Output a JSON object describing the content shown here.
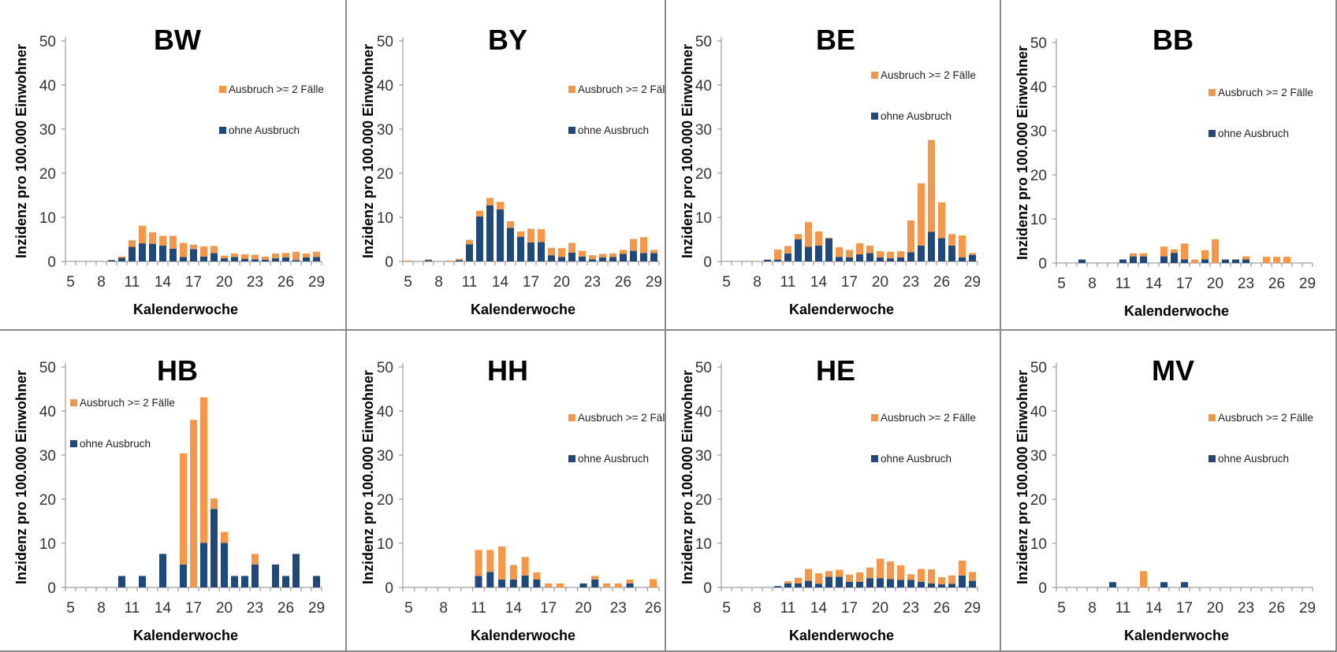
{
  "colors": {
    "ausbruch": "#F79646",
    "ohne": "#1F497D",
    "axis": "#8a8a8a",
    "grid_border": "#8a8a8a"
  },
  "chart_data": [
    {
      "type": "bar",
      "stacked": true,
      "title": "BW",
      "xlabel": "Kalenderwoche",
      "ylabel": "Inzidenz pro 100.000 Einwohner",
      "x_range": [
        5,
        29
      ],
      "x_ticks": [
        "5",
        "8",
        "11",
        "14",
        "17",
        "20",
        "23",
        "26",
        "29"
      ],
      "y_ticks": [
        "0",
        "10",
        "20",
        "30",
        "40",
        "50"
      ],
      "ylim": [
        0,
        50
      ],
      "legend_position": "right",
      "series": [
        {
          "name": "Ausbruch >= 2 Fälle",
          "color": "#F79646",
          "x": [
            10,
            11,
            12,
            13,
            14,
            15,
            16,
            17,
            18,
            19,
            20,
            21,
            22,
            23,
            24,
            25,
            26,
            27,
            28,
            29
          ],
          "values": [
            0.3,
            1.5,
            4.0,
            2.6,
            2.2,
            2.9,
            3.2,
            1.0,
            2.3,
            1.6,
            0.6,
            0.8,
            1.0,
            1.0,
            0.7,
            1.1,
            1.0,
            1.9,
            0.9,
            1.2
          ]
        },
        {
          "name": "ohne Ausbruch",
          "color": "#1F497D",
          "x": [
            9,
            10,
            11,
            12,
            13,
            14,
            15,
            16,
            17,
            18,
            19,
            20,
            21,
            22,
            23,
            24,
            25,
            26,
            27,
            28,
            29
          ],
          "values": [
            0.3,
            0.8,
            3.3,
            4.1,
            4.0,
            3.6,
            2.9,
            1.0,
            2.8,
            1.1,
            1.9,
            0.7,
            1.0,
            0.6,
            0.5,
            0.4,
            0.7,
            0.9,
            0.3,
            0.9,
            1.0
          ]
        }
      ]
    },
    {
      "type": "bar",
      "stacked": true,
      "title": "BY",
      "xlabel": "Kalenderwoche",
      "ylabel": "Inzidenz pro 100.000 Einwohner",
      "x_range": [
        5,
        29
      ],
      "x_ticks": [
        "5",
        "8",
        "11",
        "14",
        "17",
        "20",
        "23",
        "26",
        "29"
      ],
      "y_ticks": [
        "0",
        "10",
        "20",
        "30",
        "40",
        "50"
      ],
      "ylim": [
        0,
        50
      ],
      "legend_position": "right",
      "series": [
        {
          "name": "Ausbruch >= 2 Fälle",
          "color": "#F79646",
          "x": [
            5,
            7,
            9,
            10,
            11,
            12,
            13,
            14,
            15,
            16,
            17,
            18,
            19,
            20,
            21,
            22,
            23,
            24,
            25,
            26,
            27,
            28,
            29
          ],
          "values": [
            0.2,
            0.2,
            0.2,
            0.3,
            1.0,
            1.3,
            1.7,
            1.7,
            1.5,
            1.2,
            3.1,
            2.9,
            1.7,
            2.0,
            2.2,
            1.3,
            0.9,
            0.8,
            0.8,
            0.9,
            2.7,
            3.6,
            0.7
          ]
        },
        {
          "name": "ohne Ausbruch",
          "color": "#1F497D",
          "x": [
            7,
            10,
            11,
            12,
            13,
            14,
            15,
            16,
            17,
            18,
            19,
            20,
            21,
            22,
            23,
            24,
            25,
            26,
            27,
            28,
            29
          ],
          "values": [
            0.3,
            0.3,
            3.9,
            10.2,
            12.7,
            11.8,
            7.6,
            5.6,
            4.3,
            4.4,
            1.4,
            1.0,
            2.0,
            1.1,
            0.5,
            0.9,
            1.0,
            1.7,
            2.4,
            1.9,
            1.9
          ]
        }
      ]
    },
    {
      "type": "bar",
      "stacked": true,
      "title": "BE",
      "xlabel": "Kalenderwoche",
      "ylabel": "Inzidenz pro 100.000 Einwohner",
      "x_range": [
        5,
        29
      ],
      "x_ticks": [
        "5",
        "8",
        "11",
        "14",
        "17",
        "20",
        "23",
        "26",
        "29"
      ],
      "y_ticks": [
        "0",
        "10",
        "20",
        "30",
        "40",
        "50"
      ],
      "ylim": [
        0,
        50
      ],
      "legend_position": "right",
      "series": [
        {
          "name": "Ausbruch >= 2 Fälle",
          "color": "#F79646",
          "x": [
            10,
            11,
            12,
            13,
            14,
            15,
            16,
            17,
            18,
            19,
            20,
            21,
            22,
            23,
            24,
            25,
            26,
            27,
            28,
            29
          ],
          "values": [
            2.3,
            1.7,
            1.2,
            5.6,
            3.2,
            0.2,
            2.2,
            1.7,
            2.5,
            1.7,
            1.4,
            1.5,
            1.4,
            7.2,
            14.1,
            20.8,
            8.1,
            2.6,
            5.0,
            0.4
          ]
        },
        {
          "name": "ohne Ausbruch",
          "color": "#1F497D",
          "x": [
            9,
            10,
            11,
            12,
            13,
            14,
            15,
            16,
            17,
            18,
            19,
            20,
            21,
            22,
            23,
            24,
            25,
            26,
            27,
            28,
            29
          ],
          "values": [
            0.4,
            0.4,
            1.8,
            5.0,
            3.3,
            3.6,
            5.2,
            1.0,
            0.9,
            1.6,
            1.9,
            0.9,
            0.7,
            0.9,
            2.1,
            3.6,
            6.7,
            5.3,
            3.6,
            0.9,
            1.5
          ]
        }
      ]
    },
    {
      "type": "bar",
      "stacked": true,
      "title": "BB",
      "xlabel": "Kalenderwoche",
      "ylabel": "Inzidenz pro 100.000 Einwohner",
      "x_range": [
        5,
        29
      ],
      "x_ticks": [
        "5",
        "8",
        "11",
        "14",
        "17",
        "20",
        "23",
        "26",
        "29"
      ],
      "y_ticks": [
        "0",
        "10",
        "20",
        "30",
        "40",
        "50"
      ],
      "ylim": [
        0,
        50
      ],
      "legend_position": "right",
      "series": [
        {
          "name": "Ausbruch >= 2 Fälle",
          "color": "#F79646",
          "x": [
            12,
            13,
            15,
            16,
            17,
            18,
            19,
            20,
            23,
            25,
            26,
            27
          ],
          "values": [
            0.7,
            0.7,
            2.2,
            0.8,
            3.6,
            0.8,
            2.1,
            5.4,
            0.7,
            1.4,
            1.4,
            1.4
          ]
        },
        {
          "name": "ohne Ausbruch",
          "color": "#1F497D",
          "x": [
            7,
            11,
            12,
            13,
            15,
            16,
            17,
            19,
            21,
            22,
            23
          ],
          "values": [
            0.8,
            0.8,
            1.5,
            1.5,
            1.5,
            2.3,
            0.8,
            0.8,
            0.8,
            0.8,
            0.8
          ]
        }
      ]
    },
    {
      "type": "bar",
      "stacked": true,
      "title": "HB",
      "xlabel": "Kalenderwoche",
      "ylabel": "Inzidenz pro 100.000 Einwohner",
      "x_range": [
        5,
        29
      ],
      "x_ticks": [
        "5",
        "8",
        "11",
        "14",
        "17",
        "20",
        "23",
        "26",
        "29"
      ],
      "y_ticks": [
        "0",
        "10",
        "20",
        "30",
        "40",
        "50"
      ],
      "ylim": [
        0,
        50
      ],
      "legend_position": "top-left",
      "series": [
        {
          "name": "Ausbruch >= 2 Fälle",
          "color": "#F79646",
          "x": [
            16,
            17,
            18,
            19,
            20,
            23
          ],
          "values": [
            25.2,
            38.0,
            33.0,
            2.4,
            2.5,
            2.4
          ]
        },
        {
          "name": "ohne Ausbruch",
          "color": "#1F497D",
          "x": [
            10,
            12,
            14,
            16,
            18,
            19,
            20,
            21,
            22,
            23,
            25,
            26,
            27,
            29
          ],
          "values": [
            2.6,
            2.6,
            7.6,
            5.2,
            10.1,
            17.8,
            10.1,
            2.6,
            2.6,
            5.2,
            5.2,
            2.6,
            7.6,
            2.6
          ]
        }
      ]
    },
    {
      "type": "bar",
      "stacked": true,
      "title": "HH",
      "xlabel": "Kalenderwoche",
      "ylabel": "Inzidenz pro 100.000 Einwohner",
      "x_range": [
        5,
        26
      ],
      "x_ticks": [
        "5",
        "8",
        "11",
        "14",
        "17",
        "20",
        "23",
        "26"
      ],
      "y_ticks": [
        "0",
        "10",
        "20",
        "30",
        "40",
        "50"
      ],
      "ylim": [
        0,
        50
      ],
      "legend_position": "right",
      "series": [
        {
          "name": "Ausbruch >= 2 Fälle",
          "color": "#F79646",
          "x": [
            11,
            12,
            13,
            14,
            15,
            16,
            17,
            18,
            21,
            22,
            23,
            24,
            26
          ],
          "values": [
            5.9,
            5.0,
            7.5,
            3.3,
            4.2,
            1.6,
            0.9,
            0.9,
            0.8,
            0.9,
            0.9,
            0.9,
            1.9
          ]
        },
        {
          "name": "ohne Ausbruch",
          "color": "#1F497D",
          "x": [
            11,
            12,
            13,
            14,
            15,
            16,
            20,
            21,
            24
          ],
          "values": [
            2.6,
            3.5,
            1.8,
            1.8,
            2.7,
            1.8,
            0.9,
            1.8,
            0.9
          ]
        }
      ]
    },
    {
      "type": "bar",
      "stacked": true,
      "title": "HE",
      "xlabel": "Kalenderwoche",
      "ylabel": "Inzidenz pro 100.000 Einwohner",
      "x_range": [
        5,
        29
      ],
      "x_ticks": [
        "5",
        "8",
        "11",
        "14",
        "17",
        "20",
        "23",
        "26",
        "29"
      ],
      "y_ticks": [
        "0",
        "10",
        "20",
        "30",
        "40",
        "50"
      ],
      "ylim": [
        0,
        50
      ],
      "legend_position": "right",
      "series": [
        {
          "name": "Ausbruch >= 2 Fälle",
          "color": "#F79646",
          "x": [
            11,
            12,
            13,
            14,
            15,
            16,
            17,
            18,
            19,
            20,
            21,
            22,
            23,
            24,
            25,
            26,
            27,
            28,
            29
          ],
          "values": [
            0.5,
            1.3,
            2.7,
            2.4,
            1.3,
            1.6,
            1.6,
            2.1,
            2.4,
            4.4,
            4.0,
            3.3,
            1.3,
            2.9,
            3.2,
            1.6,
            1.9,
            3.4,
            2.0
          ]
        },
        {
          "name": "ohne Ausbruch",
          "color": "#1F497D",
          "x": [
            10,
            11,
            12,
            13,
            14,
            15,
            16,
            17,
            18,
            19,
            20,
            21,
            22,
            23,
            24,
            25,
            26,
            27,
            28,
            29
          ],
          "values": [
            0.3,
            0.9,
            0.9,
            1.5,
            0.8,
            2.4,
            2.4,
            1.3,
            1.3,
            2.1,
            2.1,
            1.9,
            1.7,
            1.7,
            1.3,
            0.9,
            0.7,
            0.8,
            2.7,
            1.5
          ]
        }
      ]
    },
    {
      "type": "bar",
      "stacked": true,
      "title": "MV",
      "xlabel": "Kalenderwoche",
      "ylabel": "Inzidenz pro 100.000 Einwohner",
      "x_range": [
        5,
        29
      ],
      "x_ticks": [
        "5",
        "8",
        "11",
        "14",
        "17",
        "20",
        "23",
        "26",
        "29"
      ],
      "y_ticks": [
        "0",
        "10",
        "20",
        "30",
        "40",
        "50"
      ],
      "ylim": [
        0,
        50
      ],
      "legend_position": "right",
      "series": [
        {
          "name": "Ausbruch >= 2 Fälle",
          "color": "#F79646",
          "x": [
            13
          ],
          "values": [
            3.7
          ]
        },
        {
          "name": "ohne Ausbruch",
          "color": "#1F497D",
          "x": [
            10,
            15,
            17
          ],
          "values": [
            1.2,
            1.2,
            1.2
          ]
        }
      ]
    }
  ]
}
